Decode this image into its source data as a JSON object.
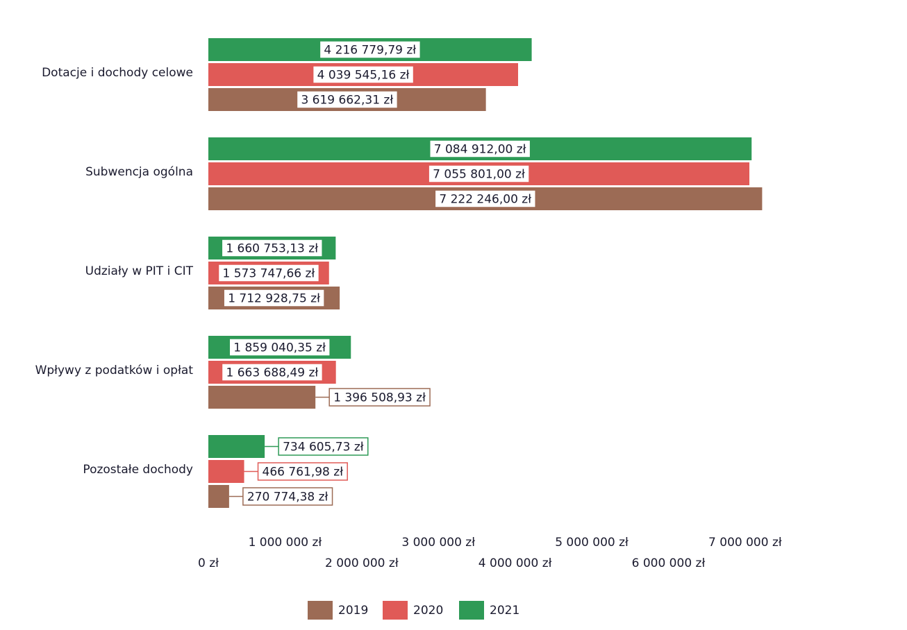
{
  "chart_data": {
    "type": "hbar",
    "categories": [
      "Dotacje i dochody celowe",
      "Subwencja ogólna",
      "Udziały w PIT i CIT",
      "Wpływy z podatków i opłat",
      "Pozostałe dochody"
    ],
    "series": [
      {
        "name": "2019",
        "color": "#9c6b55",
        "values": [
          3619662.31,
          7222246.0,
          1712928.75,
          1396508.93,
          270774.38
        ],
        "value_labels": [
          "3 619 662,31 zł",
          "7 222 246,00 zł",
          "1 712 928,75 zł",
          "1 396 508,93 zł",
          "270 774,38 zł"
        ]
      },
      {
        "name": "2020",
        "color": "#e05a57",
        "values": [
          4039545.16,
          7055801.0,
          1573747.66,
          1663688.49,
          466761.98
        ],
        "value_labels": [
          "4 039 545,16 zł",
          "7 055 801,00 zł",
          "1 573 747,66 zł",
          "1 663 688,49 zł",
          "466 761,98 zł"
        ]
      },
      {
        "name": "2021",
        "color": "#2e9a56",
        "values": [
          4216779.79,
          7084912.0,
          1660753.13,
          1859040.35,
          734605.73
        ],
        "value_labels": [
          "4 216 779,79 zł",
          "7 084 912,00 zł",
          "1 660 753,13 zł",
          "1 859 040,35 zł",
          "734 605,73 zł"
        ]
      }
    ],
    "xlim": [
      0,
      7300000
    ],
    "xticks": [
      {
        "value": 0,
        "label": "0 zł"
      },
      {
        "value": 1000000,
        "label": "1 000 000 zł"
      },
      {
        "value": 2000000,
        "label": "2 000 000 zł"
      },
      {
        "value": 3000000,
        "label": "3 000 000 zł"
      },
      {
        "value": 4000000,
        "label": "4 000 000 zł"
      },
      {
        "value": 5000000,
        "label": "5 000 000 zł"
      },
      {
        "value": 6000000,
        "label": "6 000 000 zł"
      },
      {
        "value": 7000000,
        "label": "7 000 000 zł"
      }
    ],
    "legend": "bottom"
  }
}
